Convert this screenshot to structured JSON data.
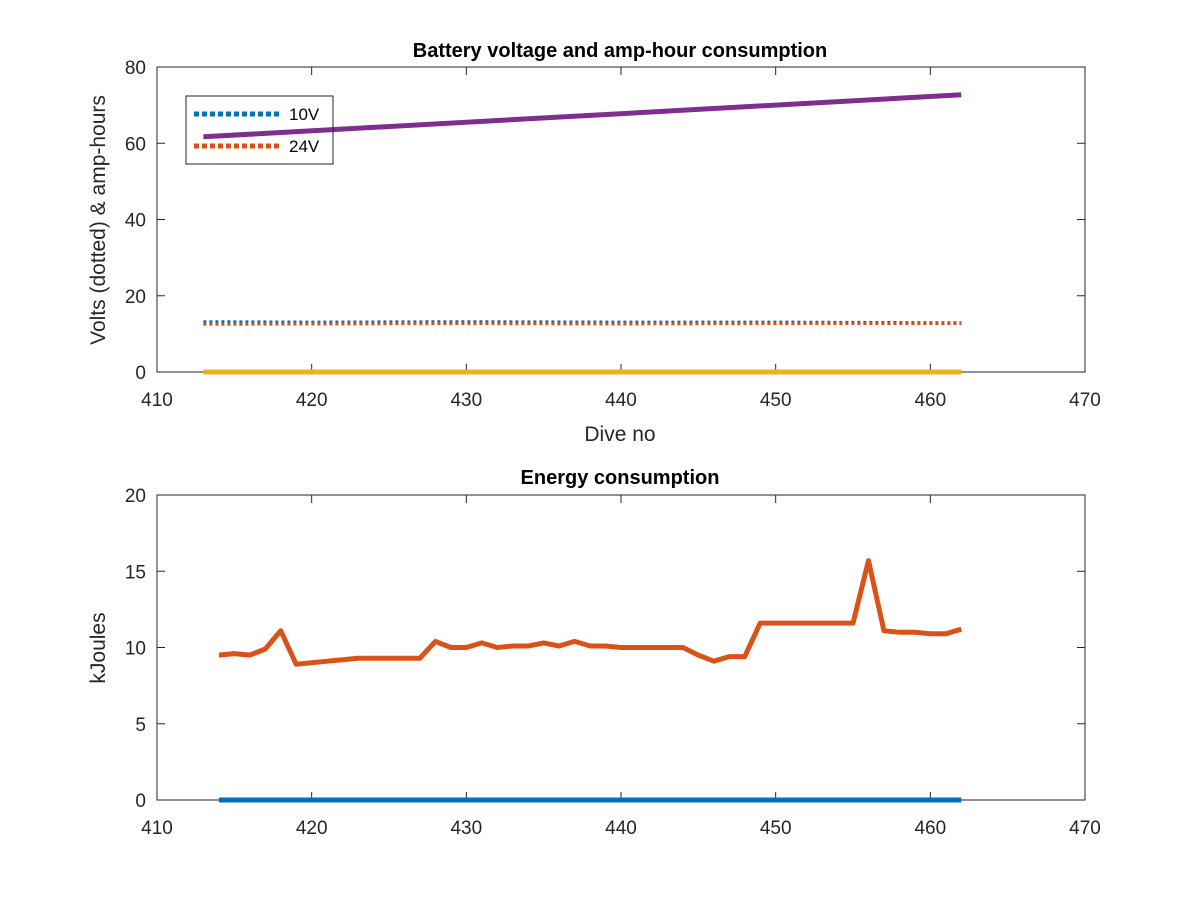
{
  "chart_data": [
    {
      "type": "line",
      "title": "Battery voltage and amp-hour consumption",
      "xlabel": "Dive no",
      "ylabel": "Volts (dotted) & amp-hours",
      "xlim": [
        410,
        470
      ],
      "ylim": [
        0,
        80
      ],
      "xticks": [
        "410",
        "420",
        "430",
        "440",
        "450",
        "460",
        "470"
      ],
      "yticks": [
        "0",
        "20",
        "40",
        "60",
        "80"
      ],
      "legend_placement": "top-left",
      "grid": false,
      "series": [
        {
          "name": "10V",
          "style": "dotted",
          "color": "#0072BD",
          "points": [
            [
              413,
              13.2
            ],
            [
              420,
              13.1
            ],
            [
              430,
              13.2
            ],
            [
              440,
              13.1
            ],
            [
              450,
              13.1
            ],
            [
              462,
              12.9
            ]
          ]
        },
        {
          "name": "24V",
          "style": "dotted",
          "color": "#D95319",
          "points": [
            [
              413,
              12.5
            ],
            [
              420,
              12.6
            ],
            [
              430,
              12.7
            ],
            [
              440,
              12.6
            ],
            [
              450,
              12.7
            ],
            [
              462,
              12.7
            ]
          ]
        },
        {
          "style": "solid",
          "color": "#EDB120",
          "points": [
            [
              413,
              0
            ],
            [
              462,
              0
            ]
          ]
        },
        {
          "style": "solid",
          "color": "#7E2F8E",
          "points": [
            [
              413,
              61.7
            ],
            [
              462,
              72.7
            ]
          ]
        }
      ]
    },
    {
      "type": "line",
      "title": "Energy consumption",
      "xlabel": "",
      "ylabel": "kJoules",
      "xlim": [
        410,
        470
      ],
      "ylim": [
        0,
        20
      ],
      "xticks": [
        "410",
        "420",
        "430",
        "440",
        "450",
        "460",
        "470"
      ],
      "yticks": [
        "0",
        "5",
        "10",
        "15",
        "20"
      ],
      "grid": false,
      "series": [
        {
          "style": "solid",
          "color": "#0072BD",
          "points": [
            [
              414,
              0
            ],
            [
              462,
              0
            ]
          ]
        },
        {
          "style": "solid",
          "color": "#D95319",
          "points": [
            [
              414,
              9.5
            ],
            [
              415,
              9.6
            ],
            [
              416,
              9.5
            ],
            [
              417,
              9.9
            ],
            [
              418,
              11.1
            ],
            [
              419,
              8.9
            ],
            [
              420,
              9.0
            ],
            [
              421,
              9.1
            ],
            [
              422,
              9.2
            ],
            [
              423,
              9.3
            ],
            [
              424,
              9.3
            ],
            [
              425,
              9.3
            ],
            [
              426,
              9.3
            ],
            [
              427,
              9.3
            ],
            [
              428,
              10.4
            ],
            [
              429,
              10.0
            ],
            [
              430,
              10.0
            ],
            [
              431,
              10.3
            ],
            [
              432,
              10.0
            ],
            [
              433,
              10.1
            ],
            [
              434,
              10.1
            ],
            [
              435,
              10.3
            ],
            [
              436,
              10.1
            ],
            [
              437,
              10.4
            ],
            [
              438,
              10.1
            ],
            [
              439,
              10.1
            ],
            [
              440,
              10.0
            ],
            [
              441,
              10.0
            ],
            [
              442,
              10.0
            ],
            [
              443,
              10.0
            ],
            [
              444,
              10.0
            ],
            [
              445,
              9.5
            ],
            [
              446,
              9.1
            ],
            [
              447,
              9.4
            ],
            [
              448,
              9.4
            ],
            [
              449,
              11.6
            ],
            [
              450,
              11.6
            ],
            [
              451,
              11.6
            ],
            [
              452,
              11.6
            ],
            [
              453,
              11.6
            ],
            [
              454,
              11.6
            ],
            [
              455,
              11.6
            ],
            [
              456,
              15.7
            ],
            [
              457,
              11.1
            ],
            [
              458,
              11.0
            ],
            [
              459,
              11.0
            ],
            [
              460,
              10.9
            ],
            [
              461,
              10.9
            ],
            [
              462,
              11.2
            ]
          ]
        }
      ]
    }
  ]
}
